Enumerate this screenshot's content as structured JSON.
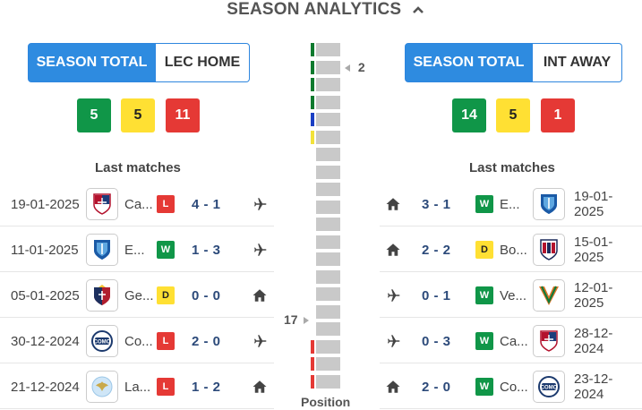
{
  "header": {
    "title": "SEASON ANALYTICS",
    "icon": "chevron-up-icon"
  },
  "left": {
    "tabs": {
      "active": "SEASON TOTAL",
      "inactive": "LEC HOME"
    },
    "stats": {
      "wins": "5",
      "draws": "5",
      "losses": "11"
    },
    "last_matches_title": "Last matches",
    "matches": [
      {
        "date": "19-01-2025",
        "crest": "cagliari",
        "team": "Ca...",
        "result": "L",
        "score": "4 - 1",
        "venue": "plane-icon"
      },
      {
        "date": "11-01-2025",
        "crest": "empoli",
        "team": "E...",
        "result": "W",
        "score": "1 - 3",
        "venue": "plane-icon"
      },
      {
        "date": "05-01-2025",
        "crest": "genoa",
        "team": "Ge...",
        "result": "D",
        "score": "0 - 0",
        "venue": "home-icon"
      },
      {
        "date": "30-12-2024",
        "crest": "como",
        "team": "Co...",
        "result": "L",
        "score": "2 - 0",
        "venue": "plane-icon"
      },
      {
        "date": "21-12-2024",
        "crest": "lazio",
        "team": "La...",
        "result": "L",
        "score": "1 - 2",
        "venue": "home-icon"
      }
    ]
  },
  "right": {
    "tabs": {
      "active": "SEASON TOTAL",
      "inactive": "INT AWAY"
    },
    "stats": {
      "wins": "14",
      "draws": "5",
      "losses": "1"
    },
    "last_matches_title": "Last matches",
    "matches": [
      {
        "date": "19-01-2025",
        "crest": "empoli",
        "team": "E...",
        "result": "W",
        "score": "3 - 1",
        "venue": "home-icon"
      },
      {
        "date": "15-01-2025",
        "crest": "bologna",
        "team": "Bo...",
        "result": "D",
        "score": "2 - 2",
        "venue": "home-icon"
      },
      {
        "date": "12-01-2025",
        "crest": "venezia",
        "team": "Ve...",
        "result": "W",
        "score": "0 - 1",
        "venue": "plane-icon"
      },
      {
        "date": "28-12-2024",
        "crest": "cagliari",
        "team": "Ca...",
        "result": "W",
        "score": "0 - 3",
        "venue": "plane-icon"
      },
      {
        "date": "23-12-2024",
        "crest": "como",
        "team": "Co...",
        "result": "W",
        "score": "2 - 0",
        "venue": "home-icon"
      }
    ]
  },
  "position": {
    "caption": "Position",
    "teams_total": 20,
    "right_team_position": "2",
    "left_team_position": "17",
    "zone_colors": [
      "#0e7a2e",
      "#0e7a2e",
      "#0e7a2e",
      "#0e7a2e",
      "#1a3fc4",
      "#f2e23a",
      "",
      "",
      "",
      "",
      "",
      "",
      "",
      "",
      "",
      "",
      "",
      "#e53935",
      "#e53935",
      "#e53935"
    ]
  },
  "colors": {
    "accent": "#2e8be0",
    "win": "#109648",
    "draw": "#ffe033",
    "loss": "#e53935"
  }
}
